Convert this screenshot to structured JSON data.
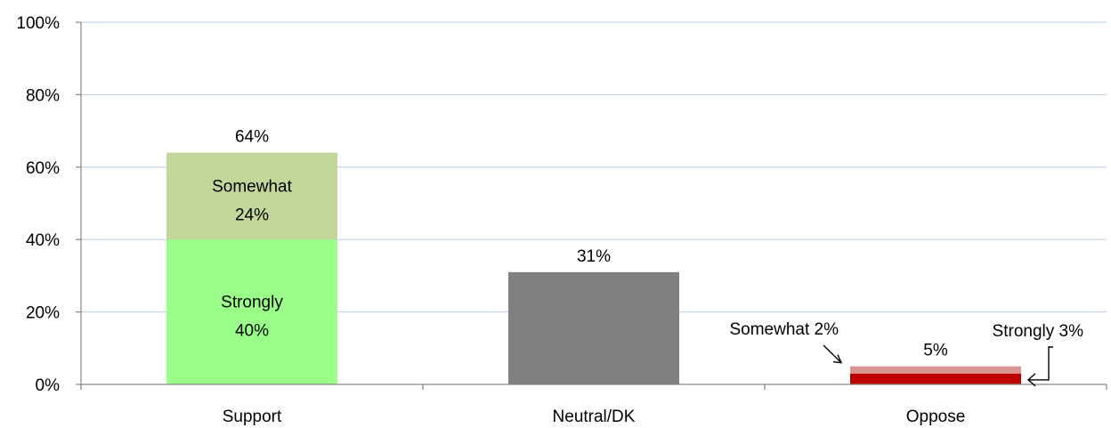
{
  "chart_data": {
    "type": "bar",
    "stacked": true,
    "title": "",
    "xlabel": "",
    "ylabel": "",
    "ylim": [
      0,
      100
    ],
    "y_ticks": [
      0,
      20,
      40,
      60,
      80,
      100
    ],
    "y_tick_labels": [
      "0%",
      "20%",
      "40%",
      "60%",
      "80%",
      "100%"
    ],
    "grid": true,
    "legend": "none",
    "categories": [
      "Support",
      "Neutral/DK",
      "Oppose"
    ],
    "colors": {
      "grid": "#b9cde5",
      "axis": "#868686",
      "support_strongly": "#99ff88",
      "support_somewhat": "#c4d79b",
      "neutral": "#808080",
      "oppose_strongly": "#c00000",
      "oppose_somewhat": "#d99594",
      "arrow": "#000000"
    },
    "bars": [
      {
        "category": "Support",
        "total": 64,
        "total_label": "64%",
        "segments": [
          {
            "key": "support_strongly",
            "value": 40,
            "label_line1": "Strongly",
            "label_line2": "40%",
            "label_placement": "inside"
          },
          {
            "key": "support_somewhat",
            "value": 24,
            "label_line1": "Somewhat",
            "label_line2": "24%",
            "label_placement": "inside"
          }
        ]
      },
      {
        "category": "Neutral/DK",
        "total": 31,
        "total_label": "31%",
        "segments": [
          {
            "key": "neutral",
            "value": 31,
            "label_line1": "",
            "label_line2": "",
            "label_placement": "none"
          }
        ]
      },
      {
        "category": "Oppose",
        "total": 5,
        "total_label": "5%",
        "segments": [
          {
            "key": "oppose_strongly",
            "value": 3,
            "label_line1": "Strongly 3%",
            "label_line2": "",
            "label_placement": "callout-right"
          },
          {
            "key": "oppose_somewhat",
            "value": 2,
            "label_line1": "Somewhat 2%",
            "label_line2": "",
            "label_placement": "callout-left"
          }
        ]
      }
    ]
  }
}
